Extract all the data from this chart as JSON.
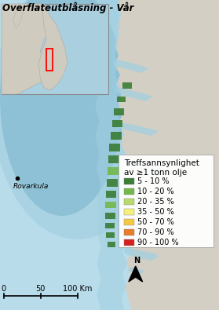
{
  "title": "Overflateutblåsning - Vår",
  "legend_title": "Treffsannsynlighet\nav ≥1 tonn olje",
  "legend_items": [
    {
      "label": "5 - 10 %",
      "color": "#3a7d35"
    },
    {
      "label": "10 - 20 %",
      "color": "#72b84a"
    },
    {
      "label": "20 - 35 %",
      "color": "#b8d96e"
    },
    {
      "label": "35 - 50 %",
      "color": "#f5f07a"
    },
    {
      "label": "50 - 70 %",
      "color": "#f5c842"
    },
    {
      "label": "70 - 90 %",
      "color": "#e87d2a"
    },
    {
      "label": "90 - 100 %",
      "color": "#d42020"
    }
  ],
  "rovarkula_label": "Rovarkula",
  "bg_sea_light": "#b8dcea",
  "bg_sea_mid": "#8fc4d8",
  "bg_sea_dark": "#5ea0bf",
  "bg_land_color": "#d4cfc5",
  "bg_coast_water": "#9fd0e0",
  "inset_sea": "#aacfdf",
  "inset_land": "#d0cbbf",
  "title_fontsize": 8.5,
  "legend_title_fontsize": 7.5,
  "legend_item_fontsize": 7,
  "scale_fontsize": 7,
  "rovarkula_fontsize": 6.5,
  "bar_positions": [
    [
      158,
      105,
      12,
      8,
      0
    ],
    [
      151,
      123,
      11,
      7,
      0
    ],
    [
      147,
      138,
      13,
      9,
      0
    ],
    [
      145,
      153,
      13,
      9,
      0
    ],
    [
      143,
      168,
      14,
      10,
      0
    ],
    [
      141,
      183,
      14,
      10,
      0
    ],
    [
      140,
      198,
      15,
      10,
      0
    ],
    [
      139,
      213,
      15,
      10,
      1
    ],
    [
      138,
      228,
      14,
      10,
      0
    ],
    [
      137,
      243,
      13,
      9,
      0
    ],
    [
      136,
      257,
      14,
      8,
      1
    ],
    [
      136,
      271,
      13,
      8,
      0
    ],
    [
      136,
      284,
      12,
      7,
      0
    ],
    [
      137,
      296,
      11,
      7,
      0
    ],
    [
      139,
      308,
      10,
      7,
      0
    ]
  ]
}
